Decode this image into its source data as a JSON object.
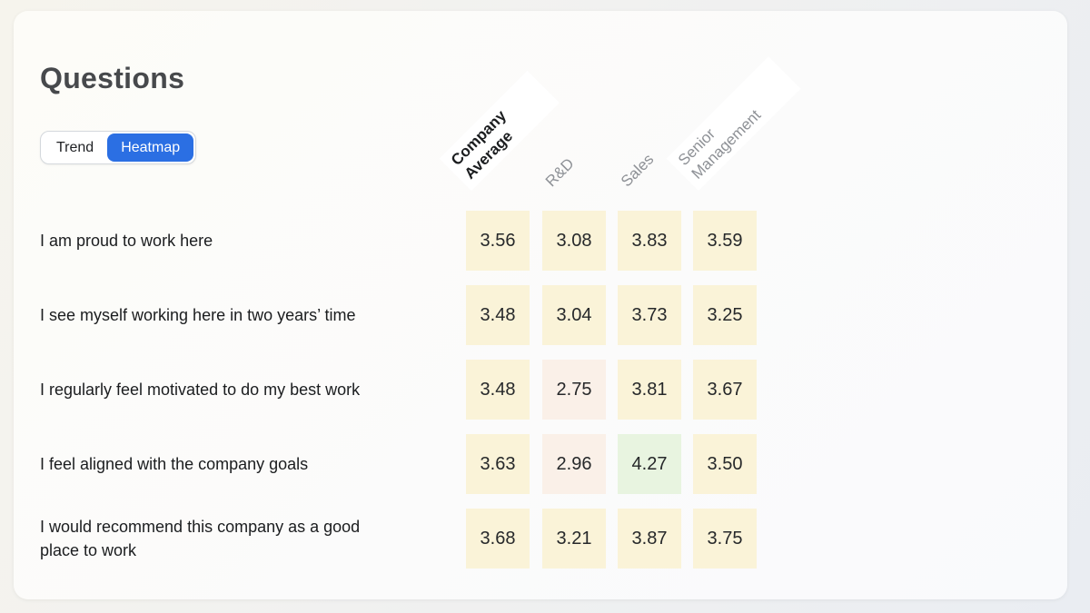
{
  "header": {
    "title": "Questions"
  },
  "view_toggle": {
    "options": [
      {
        "label": "Trend",
        "active": false
      },
      {
        "label": "Heatmap",
        "active": true
      }
    ]
  },
  "colors": {
    "accent_blue": "#2B6FE3",
    "cell_low": "#FAF0E8",
    "cell_mid": "#FAF3D8",
    "cell_high": "#E8F4E0",
    "header_gray": "#8E9196"
  },
  "chart_data": {
    "type": "heatmap",
    "columns": [
      {
        "label": "Company Average",
        "lines": [
          "Company",
          "Average"
        ],
        "bold": true,
        "band": true
      },
      {
        "label": "R&D",
        "lines": [
          "R&D"
        ],
        "bold": false,
        "band": false
      },
      {
        "label": "Sales",
        "lines": [
          "Sales"
        ],
        "bold": false,
        "band": false
      },
      {
        "label": "Senior Management",
        "lines": [
          "Senior",
          "Management"
        ],
        "bold": false,
        "band": true
      }
    ],
    "rows": [
      {
        "question": "I am proud to work here",
        "lines": [
          "I am proud to work here"
        ],
        "values": [
          3.56,
          3.08,
          3.83,
          3.59
        ]
      },
      {
        "question": "I see myself working here in two years’ time",
        "lines": [
          "I see myself working here in two years’ time"
        ],
        "values": [
          3.48,
          3.04,
          3.73,
          3.25
        ]
      },
      {
        "question": "I regularly feel motivated to do my best work",
        "lines": [
          "I regularly feel motivated to do my best work"
        ],
        "values": [
          3.48,
          2.75,
          3.81,
          3.67
        ]
      },
      {
        "question": "I feel aligned with the company goals",
        "lines": [
          "I feel aligned with the company goals"
        ],
        "values": [
          3.63,
          2.96,
          4.27,
          3.5
        ]
      },
      {
        "question": "I would recommend this company as a good place to work",
        "lines": [
          "I would recommend this company as a good",
          "place to work"
        ],
        "values": [
          3.68,
          3.21,
          3.87,
          3.75
        ]
      }
    ],
    "value_format": "0.00",
    "color_scale": {
      "low_below_3": "#FAF0E8",
      "mid_3_to_4": "#FAF3D8",
      "high_above_4": "#E8F4E0"
    }
  }
}
